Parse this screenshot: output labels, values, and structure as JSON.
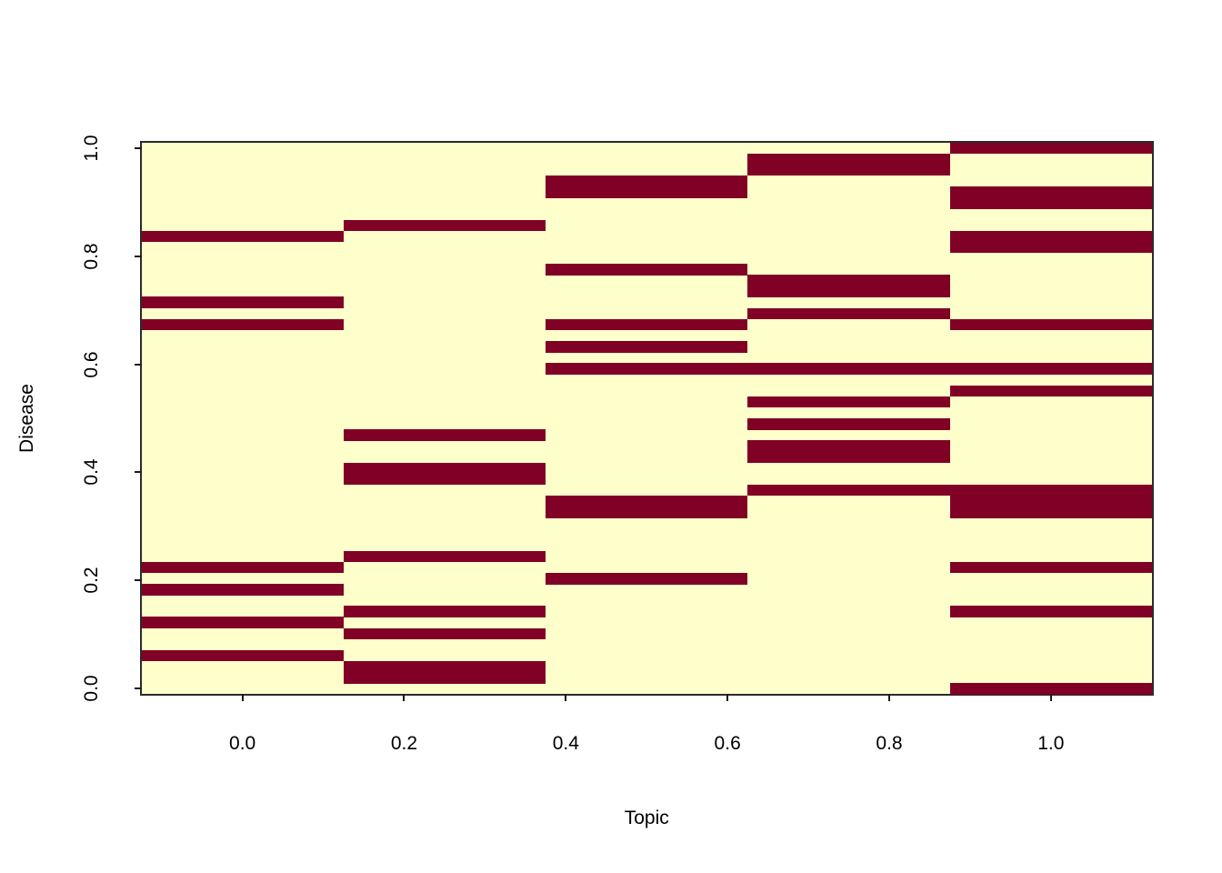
{
  "axes": {
    "x": {
      "label": "Topic",
      "tick_labels": [
        "0.0",
        "0.2",
        "0.4",
        "0.6",
        "0.8",
        "1.0"
      ],
      "tick_values": [
        0.0,
        0.2,
        0.4,
        0.6,
        0.8,
        1.0
      ],
      "range_shown": [
        -0.125,
        1.125
      ]
    },
    "y": {
      "label": "Disease",
      "tick_labels": [
        "0.0",
        "0.2",
        "0.4",
        "0.6",
        "0.8",
        "1.0"
      ],
      "tick_values": [
        0.0,
        0.2,
        0.4,
        0.6,
        0.8,
        1.0
      ],
      "range_shown": [
        -0.0102,
        1.0102
      ]
    }
  },
  "chart_data": {
    "type": "heatmap",
    "title": "",
    "xlabel": "Topic",
    "ylabel": "Disease",
    "n_cols": 5,
    "n_rows": 50,
    "column_x_centers": [
      0.0,
      0.25,
      0.5,
      0.75,
      1.0
    ],
    "row_y_centers_span": [
      0.0,
      1.0
    ],
    "cell_values": "binary",
    "legend": "none",
    "colors": {
      "value0": "#FFFFCC",
      "value1": "#800026"
    },
    "dark_rows_by_column_bottom_indexed": [
      [
        3,
        6,
        9,
        11,
        33,
        35,
        41
      ],
      [
        1,
        2,
        5,
        7,
        12,
        19,
        20,
        23,
        42
      ],
      [
        10,
        16,
        17,
        29,
        31,
        33,
        38,
        45,
        46
      ],
      [
        18,
        21,
        22,
        24,
        26,
        29,
        34,
        36,
        37,
        47,
        48
      ],
      [
        0,
        7,
        11,
        16,
        17,
        18,
        27,
        29,
        33,
        40,
        41,
        44,
        45,
        49
      ]
    ],
    "dark_row_y_values_by_column": [
      [
        0.061,
        0.122,
        0.184,
        0.224,
        0.673,
        0.714,
        0.837
      ],
      [
        0.02,
        0.041,
        0.102,
        0.143,
        0.245,
        0.388,
        0.408,
        0.469,
        0.857
      ],
      [
        0.204,
        0.327,
        0.347,
        0.592,
        0.633,
        0.673,
        0.776,
        0.918,
        0.939
      ],
      [
        0.367,
        0.429,
        0.449,
        0.49,
        0.531,
        0.592,
        0.694,
        0.735,
        0.755,
        0.959,
        0.98
      ],
      [
        0.0,
        0.143,
        0.224,
        0.327,
        0.347,
        0.367,
        0.551,
        0.592,
        0.673,
        0.816,
        0.837,
        0.898,
        0.918,
        1.0
      ]
    ]
  }
}
